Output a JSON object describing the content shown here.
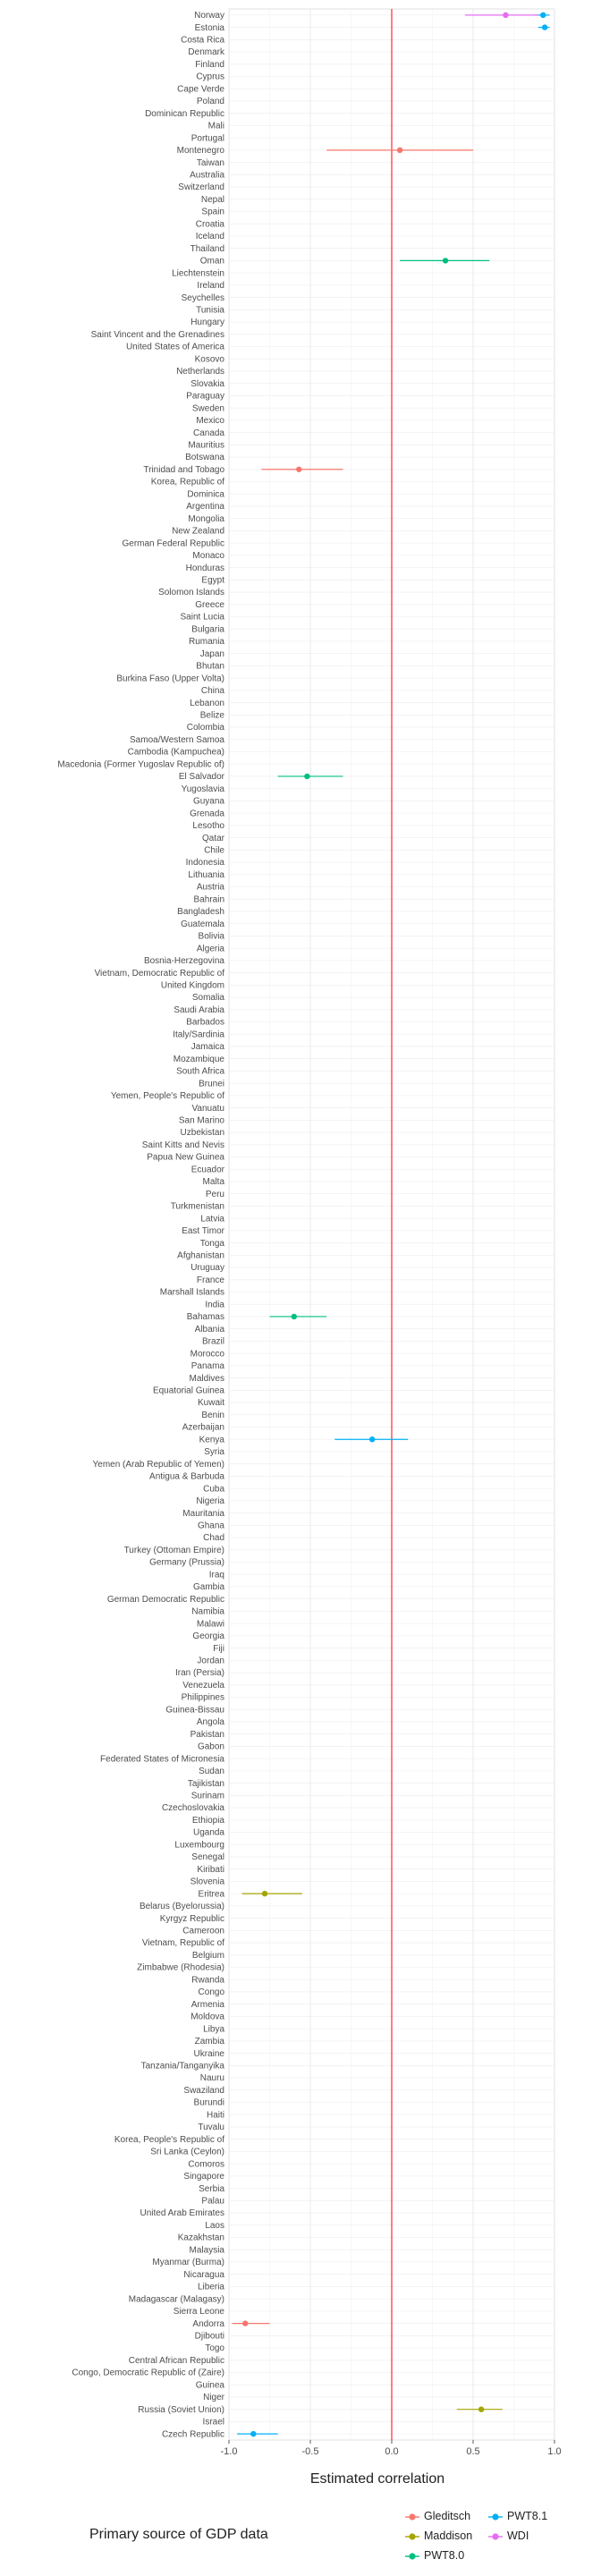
{
  "chart_data": {
    "type": "scatter",
    "xlabel": "Estimated correlation",
    "xlim": [
      -1.0,
      1.0
    ],
    "x_ticks": [
      "-1.0",
      "-0.5",
      "0.0",
      "0.5",
      "1.0"
    ],
    "x_tick_values": [
      -1.0,
      -0.5,
      0.0,
      0.5,
      1.0
    ],
    "reference_line": {
      "x": 0.0,
      "color": "#ff0000"
    },
    "grid": true,
    "legend": {
      "title": "Primary source of GDP data",
      "position": "bottom",
      "entries": [
        {
          "name": "Gleditsch",
          "color": "#f8766d"
        },
        {
          "name": "Maddison",
          "color": "#a3a500"
        },
        {
          "name": "PWT8.0",
          "color": "#00bf7d"
        },
        {
          "name": "PWT8.1",
          "color": "#00b0f6"
        },
        {
          "name": "WDI",
          "color": "#e76bf3"
        }
      ]
    },
    "categories": [
      "Norway",
      "Estonia",
      "Costa Rica",
      "Denmark",
      "Finland",
      "Cyprus",
      "Cape Verde",
      "Poland",
      "Dominican Republic",
      "Mali",
      "Portugal",
      "Montenegro",
      "Taiwan",
      "Australia",
      "Switzerland",
      "Nepal",
      "Spain",
      "Croatia",
      "Iceland",
      "Thailand",
      "Oman",
      "Liechtenstein",
      "Ireland",
      "Seychelles",
      "Tunisia",
      "Hungary",
      "Saint Vincent and the Grenadines",
      "United States of America",
      "Kosovo",
      "Netherlands",
      "Slovakia",
      "Paraguay",
      "Sweden",
      "Mexico",
      "Canada",
      "Mauritius",
      "Botswana",
      "Trinidad and Tobago",
      "Korea, Republic of",
      "Dominica",
      "Argentina",
      "Mongolia",
      "New Zealand",
      "German Federal Republic",
      "Monaco",
      "Honduras",
      "Egypt",
      "Solomon Islands",
      "Greece",
      "Saint Lucia",
      "Bulgaria",
      "Rumania",
      "Japan",
      "Bhutan",
      "Burkina Faso (Upper Volta)",
      "China",
      "Lebanon",
      "Belize",
      "Colombia",
      "Samoa/Western Samoa",
      "Cambodia (Kampuchea)",
      "Macedonia (Former Yugoslav Republic of)",
      "El Salvador",
      "Yugoslavia",
      "Guyana",
      "Grenada",
      "Lesotho",
      "Qatar",
      "Chile",
      "Indonesia",
      "Lithuania",
      "Austria",
      "Bahrain",
      "Bangladesh",
      "Guatemala",
      "Bolivia",
      "Algeria",
      "Bosnia-Herzegovina",
      "Vietnam, Democratic Republic of",
      "United Kingdom",
      "Somalia",
      "Saudi Arabia",
      "Barbados",
      "Italy/Sardinia",
      "Jamaica",
      "Mozambique",
      "South Africa",
      "Brunei",
      "Yemen, People's Republic of",
      "Vanuatu",
      "San Marino",
      "Uzbekistan",
      "Saint Kitts and Nevis",
      "Papua New Guinea",
      "Ecuador",
      "Malta",
      "Peru",
      "Turkmenistan",
      "Latvia",
      "East Timor",
      "Tonga",
      "Afghanistan",
      "Uruguay",
      "France",
      "Marshall Islands",
      "India",
      "Bahamas",
      "Albania",
      "Brazil",
      "Morocco",
      "Panama",
      "Maldives",
      "Equatorial Guinea",
      "Kuwait",
      "Benin",
      "Azerbaijan",
      "Kenya",
      "Syria",
      "Yemen (Arab Republic of Yemen)",
      "Antigua & Barbuda",
      "Cuba",
      "Nigeria",
      "Mauritania",
      "Ghana",
      "Chad",
      "Turkey (Ottoman Empire)",
      "Germany (Prussia)",
      "Iraq",
      "Gambia",
      "German Democratic Republic",
      "Namibia",
      "Malawi",
      "Georgia",
      "Fiji",
      "Jordan",
      "Iran (Persia)",
      "Venezuela",
      "Philippines",
      "Guinea-Bissau",
      "Angola",
      "Pakistan",
      "Gabon",
      "Federated States of Micronesia",
      "Sudan",
      "Tajikistan",
      "Surinam",
      "Czechoslovakia",
      "Ethiopia",
      "Uganda",
      "Luxembourg",
      "Senegal",
      "Kiribati",
      "Slovenia",
      "Eritrea",
      "Belarus (Byelorussia)",
      "Kyrgyz Republic",
      "Cameroon",
      "Vietnam, Republic of",
      "Belgium",
      "Zimbabwe (Rhodesia)",
      "Rwanda",
      "Congo",
      "Armenia",
      "Moldova",
      "Libya",
      "Zambia",
      "Ukraine",
      "Tanzania/Tanganyika",
      "Nauru",
      "Swaziland",
      "Burundi",
      "Haiti",
      "Tuvalu",
      "Korea, People's Republic of",
      "Sri Lanka (Ceylon)",
      "Comoros",
      "Singapore",
      "Serbia",
      "Palau",
      "United Arab Emirates",
      "Laos",
      "Kazakhstan",
      "Malaysia",
      "Myanmar (Burma)",
      "Nicaragua",
      "Liberia",
      "Madagascar (Malagasy)",
      "Sierra Leone",
      "Andorra",
      "Djibouti",
      "Togo",
      "Central African Republic",
      "Congo, Democratic Republic of (Zaire)",
      "Guinea",
      "Niger",
      "Russia (Soviet Union)",
      "Israel",
      "Czech Republic"
    ],
    "points": [
      {
        "category": "Norway",
        "source": "PWT8.1",
        "estimate": 0.93,
        "lo": 0.88,
        "hi": 0.97
      },
      {
        "category": "Norway",
        "source": "WDI",
        "estimate": 0.7,
        "lo": 0.45,
        "hi": 0.9
      },
      {
        "category": "Estonia",
        "source": "PWT8.1",
        "estimate": 0.94,
        "lo": 0.9,
        "hi": 0.97
      },
      {
        "category": "Montenegro",
        "source": "Gleditsch",
        "estimate": 0.05,
        "lo": -0.4,
        "hi": 0.5
      },
      {
        "category": "Oman",
        "source": "PWT8.0",
        "estimate": 0.33,
        "lo": 0.05,
        "hi": 0.6
      },
      {
        "category": "Trinidad and Tobago",
        "source": "Gleditsch",
        "estimate": -0.57,
        "lo": -0.8,
        "hi": -0.3
      },
      {
        "category": "El Salvador",
        "source": "PWT8.0",
        "estimate": -0.52,
        "lo": -0.7,
        "hi": -0.3
      },
      {
        "category": "Bahamas",
        "source": "PWT8.0",
        "estimate": -0.6,
        "lo": -0.75,
        "hi": -0.4
      },
      {
        "category": "Kenya",
        "source": "PWT8.1",
        "estimate": -0.12,
        "lo": -0.35,
        "hi": 0.1
      },
      {
        "category": "Eritrea",
        "source": "Maddison",
        "estimate": -0.78,
        "lo": -0.92,
        "hi": -0.55
      },
      {
        "category": "Andorra",
        "source": "Gleditsch",
        "estimate": -0.9,
        "lo": -0.98,
        "hi": -0.75
      },
      {
        "category": "Russia (Soviet Union)",
        "source": "Maddison",
        "estimate": 0.55,
        "lo": 0.4,
        "hi": 0.68
      },
      {
        "category": "Czech Republic",
        "source": "PWT8.1",
        "estimate": -0.85,
        "lo": -0.95,
        "hi": -0.7
      }
    ]
  }
}
